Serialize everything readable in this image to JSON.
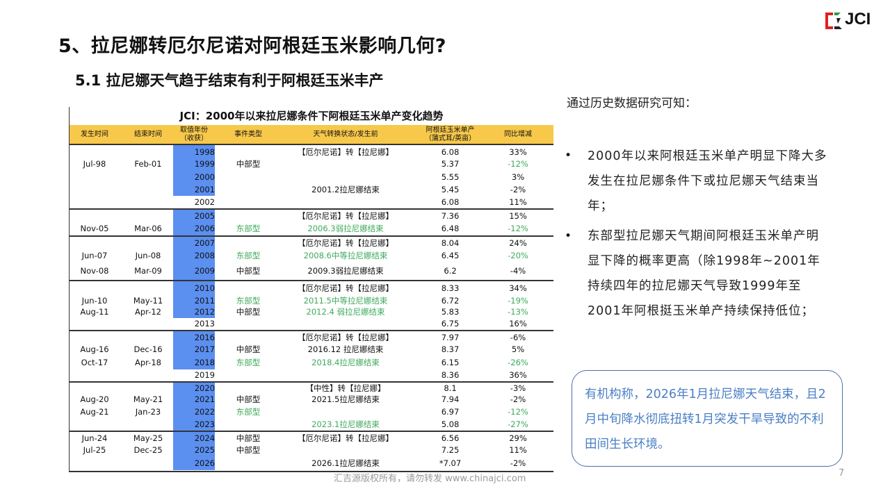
{
  "header": {
    "title": "5、拉尼娜转厄尔尼诺对阿根廷玉米影响几何?",
    "subtitle": "5.1 拉尼娜天气趋于结束有利于阿根廷玉米丰产",
    "logo_text": "JCI"
  },
  "table": {
    "title": "JCI：2000年以来拉尼娜条件下阿根廷玉米单产变化趋势",
    "columns": [
      "发生时间",
      "结束时间",
      "取值年份\n（收获）",
      "事件类型",
      "天气转换状态/发生前",
      "阿根廷玉米单产\n（蒲式耳/英亩）",
      "同比增减"
    ],
    "rows": [
      {
        "start": "",
        "end": "",
        "year": "1998",
        "type": "",
        "status": "【厄尔尼诺】转【拉尼娜】",
        "yield": "6.08",
        "change": "33%",
        "hl": true,
        "gs": true
      },
      {
        "start": "Jul-98",
        "end": "Feb-01",
        "year": "1999",
        "type": "中部型",
        "status": "",
        "yield": "5.37",
        "change": "-12%",
        "change_green": true,
        "hl": true
      },
      {
        "start": "",
        "end": "",
        "year": "2000",
        "type": "",
        "status": "",
        "yield": "5.55",
        "change": "3%",
        "hl": true
      },
      {
        "start": "",
        "end": "",
        "year": "2001",
        "type": "",
        "status": "2001.2拉尼娜结束",
        "yield": "5.45",
        "change": "-2%",
        "hl": true
      },
      {
        "start": "",
        "end": "",
        "year": "2002",
        "type": "",
        "status": "",
        "yield": "6.08",
        "change": "11%"
      },
      {
        "start": "",
        "end": "",
        "year": "2005",
        "type": "",
        "status": "【厄尔尼诺】转【拉尼娜】",
        "yield": "7.36",
        "change": "15%",
        "hl": true,
        "gs": true
      },
      {
        "start": "Nov-05",
        "end": "Mar-06",
        "year": "2006",
        "type": "东部型",
        "type_green": true,
        "status": "2006.3弱拉尼娜结束",
        "status_green": true,
        "yield": "6.48",
        "change": "-12%",
        "change_green": true,
        "hl": true
      },
      {
        "start": "",
        "end": "",
        "year": "2007",
        "type": "",
        "status": "【厄尔尼诺】转【拉尼娜】",
        "yield": "8.04",
        "change": "24%",
        "hl": true,
        "gs": true
      },
      {
        "start": "Jun-07",
        "end": "Jun-08",
        "year": "2008",
        "type": "东部型",
        "type_green": true,
        "status": "2008.6中等拉尼娜结束",
        "status_green": true,
        "yield": "6.45",
        "change": "-20%",
        "change_green": true,
        "hl": true
      },
      {
        "start": "Nov-08",
        "end": "Mar-09",
        "year": "2009",
        "type": "中部型",
        "status": "2009.3弱拉尼娜结束",
        "yield": "6.2",
        "change": "-4%",
        "hl": true
      },
      {
        "start": "",
        "end": "",
        "year": "2010",
        "type": "",
        "status": "【厄尔尼诺】转【拉尼娜】",
        "yield": "8.33",
        "change": "34%",
        "hl": true,
        "gs": true
      },
      {
        "start": "Jun-10",
        "end": "May-11",
        "year": "2011",
        "type": "东部型",
        "type_green": true,
        "status": "2011.5中等拉尼娜结束",
        "status_green": true,
        "yield": "6.72",
        "change": "-19%",
        "change_green": true,
        "hl": true
      },
      {
        "start": "Aug-11",
        "end": "Apr-12",
        "year": "2012",
        "type": "中部型",
        "status": "2012.4 弱拉尼娜结束",
        "status_green": true,
        "yield": "5.83",
        "change": "-13%",
        "change_green": true,
        "hl": true
      },
      {
        "start": "",
        "end": "",
        "year": "2013",
        "type": "",
        "status": "",
        "yield": "6.75",
        "change": "16%"
      },
      {
        "start": "",
        "end": "",
        "year": "2016",
        "type": "",
        "status": "【厄尔尼诺】转【拉尼娜】",
        "yield": "7.97",
        "change": "-6%",
        "hl": true,
        "gs": true
      },
      {
        "start": "Aug-16",
        "end": "Dec-16",
        "year": "2017",
        "type": "中部型",
        "status": "2016.12 拉尼娜结束",
        "yield": "8.37",
        "change": "5%",
        "hl": true
      },
      {
        "start": "Oct-17",
        "end": "Apr-18",
        "year": "2018",
        "type": "东部型",
        "type_green": true,
        "status": "2018.4拉尼娜结束",
        "status_green": true,
        "yield": "6.15",
        "change": "-26%",
        "change_green": true,
        "hl": true
      },
      {
        "start": "",
        "end": "",
        "year": "2019",
        "type": "",
        "status": "",
        "yield": "8.36",
        "change": "36%"
      },
      {
        "start": "",
        "end": "",
        "year": "2020",
        "type": "",
        "status": "【中性】转【拉尼娜】",
        "yield": "8.1",
        "change": "-3%",
        "hl": true,
        "gs": true
      },
      {
        "start": "Aug-20",
        "end": "May-21",
        "year": "2021",
        "type": "中部型",
        "status": "2021.5拉尼娜结束",
        "yield": "7.94",
        "change": "-2%",
        "hl": true
      },
      {
        "start": "Aug-21",
        "end": "Jan-23",
        "year": "2022",
        "type": "东部型",
        "type_green": true,
        "status": "",
        "yield": "6.97",
        "change": "-12%",
        "change_green": true,
        "hl": true
      },
      {
        "start": "",
        "end": "",
        "year": "2023",
        "type": "",
        "status": "2023.1拉尼娜结束",
        "status_green": true,
        "yield": "5.08",
        "change": "-27%",
        "change_green": true,
        "hl": true
      },
      {
        "start": "Jun-24",
        "end": "May-25",
        "year": "2024",
        "type": "中部型",
        "status": "【厄尔尼诺】转【拉尼娜】",
        "yield": "6.56",
        "change": "29%",
        "hl": true,
        "gs": true
      },
      {
        "start": "Jul-25",
        "end": "Dec-25",
        "year": "2025",
        "type": "中部型",
        "status": "",
        "yield": "7.25",
        "change": "11%",
        "hl": true
      },
      {
        "start": "",
        "end": "",
        "year": "2026",
        "type": "",
        "status": "2026.1拉尼娜结束",
        "yield": "*7.07",
        "change": "-2%",
        "hl": true
      }
    ]
  },
  "right": {
    "intro": "通过历史数据研究可知：",
    "bullets": [
      "2000年以来阿根廷玉米单产明显下降大多发生在拉尼娜条件下或拉尼娜天气结束当年；",
      "东部型拉尼娜天气期间阿根廷玉米单产明显下降的概率更高（除1998年~2001年持续四年的拉尼娜天气导致1999年至2001年阿根挺玉米单产持续保持低位；"
    ],
    "bullet_symbol": "•",
    "note": "有机构称，2026年1月拉尼娜天气结束，且2月中旬降水彻底扭转1月突发干旱导致的不利田间生长环境。"
  },
  "footer": {
    "copyright": "汇吉源版权所有，请勿转发 www.chinajci.com",
    "page": "7"
  },
  "colors": {
    "highlight": "#5b8ff0",
    "header_bg": "#f7c84a",
    "green": "#3daa5c",
    "note_blue": "#4a7fc4"
  }
}
